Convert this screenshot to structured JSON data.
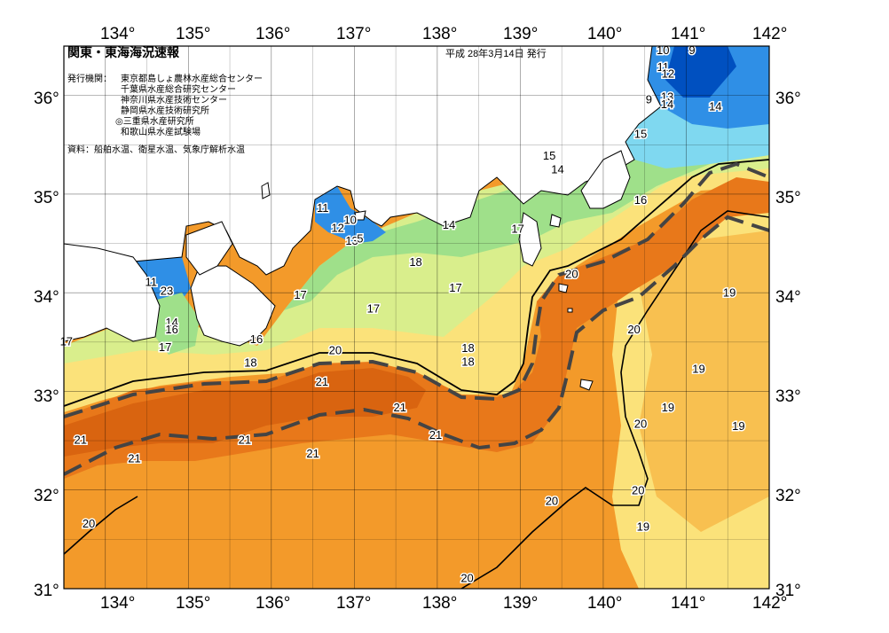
{
  "header": {
    "title": "関東・東海海況速報",
    "issued": "平成 28年3月14日 発行",
    "publisher_label": "発行機関：",
    "publishers": [
      "東京都島しょ農林水産総合センター",
      "千葉県水産総合研究センター",
      "神奈川県水産技術センター",
      "静岡県水産技術研究所",
      "◎三重県水産研究所",
      "和歌山県水産試験場"
    ],
    "source": "資料：船舶水温、衛星水温、気象庁解析水温"
  },
  "axes": {
    "lon_labels": [
      "134°",
      "135°",
      "136°",
      "137°",
      "138°",
      "139°",
      "140°",
      "141°",
      "142°"
    ],
    "lat_labels": [
      "36°",
      "35°",
      "34°",
      "33°",
      "32°",
      "31°"
    ]
  },
  "colors": {
    "cold": "#2f8fe6",
    "cool": "#7fd8f0",
    "mid": "#9fe08a",
    "lightgreen": "#d9ee8c",
    "warm1": "#fbe27a",
    "warm2": "#f8c050",
    "warm3": "#f39a2a",
    "warm4": "#e8781a",
    "deep": "#0050c0",
    "land": "#ffffff"
  },
  "isotherm_labels": [
    {
      "text": "10",
      "lon": 140.72,
      "lat": 36.45
    },
    {
      "text": "9",
      "lon": 141.07,
      "lat": 36.45
    },
    {
      "text": "11",
      "lon": 140.72,
      "lat": 36.28
    },
    {
      "text": "12",
      "lon": 140.78,
      "lat": 36.21
    },
    {
      "text": "9",
      "lon": 140.55,
      "lat": 35.95
    },
    {
      "text": "13",
      "lon": 140.77,
      "lat": 35.98
    },
    {
      "text": "14",
      "lon": 140.77,
      "lat": 35.9
    },
    {
      "text": "14",
      "lon": 141.35,
      "lat": 35.88
    },
    {
      "text": "15",
      "lon": 140.45,
      "lat": 35.6
    },
    {
      "text": "15",
      "lon": 139.35,
      "lat": 35.38
    },
    {
      "text": "14",
      "lon": 139.45,
      "lat": 35.24
    },
    {
      "text": "16",
      "lon": 140.45,
      "lat": 34.93
    },
    {
      "text": "11",
      "lon": 136.62,
      "lat": 34.85
    },
    {
      "text": "10",
      "lon": 136.95,
      "lat": 34.73
    },
    {
      "text": "12",
      "lon": 136.8,
      "lat": 34.65
    },
    {
      "text": "13",
      "lon": 136.97,
      "lat": 34.52
    },
    {
      "text": "5",
      "lon": 137.07,
      "lat": 34.54
    },
    {
      "text": "14",
      "lon": 138.14,
      "lat": 34.68
    },
    {
      "text": "17",
      "lon": 138.97,
      "lat": 34.64
    },
    {
      "text": "18",
      "lon": 137.74,
      "lat": 34.3
    },
    {
      "text": "20",
      "lon": 139.62,
      "lat": 34.18
    },
    {
      "text": "17",
      "lon": 138.22,
      "lat": 34.04
    },
    {
      "text": "17",
      "lon": 136.35,
      "lat": 33.97
    },
    {
      "text": "17",
      "lon": 137.23,
      "lat": 33.83
    },
    {
      "text": "19",
      "lon": 141.52,
      "lat": 33.99
    },
    {
      "text": "11",
      "lon": 134.55,
      "lat": 34.1
    },
    {
      "text": "23",
      "lon": 134.74,
      "lat": 34.01
    },
    {
      "text": "14",
      "lon": 134.8,
      "lat": 33.69
    },
    {
      "text": "16",
      "lon": 134.8,
      "lat": 33.62
    },
    {
      "text": "17",
      "lon": 133.53,
      "lat": 33.5
    },
    {
      "text": "17",
      "lon": 134.72,
      "lat": 33.44
    },
    {
      "text": "16",
      "lon": 135.82,
      "lat": 33.52
    },
    {
      "text": "18",
      "lon": 135.75,
      "lat": 33.28
    },
    {
      "text": "20",
      "lon": 136.77,
      "lat": 33.41
    },
    {
      "text": "18",
      "lon": 138.37,
      "lat": 33.43
    },
    {
      "text": "18",
      "lon": 138.37,
      "lat": 33.29
    },
    {
      "text": "20",
      "lon": 140.37,
      "lat": 33.62
    },
    {
      "text": "19",
      "lon": 141.15,
      "lat": 33.22
    },
    {
      "text": "21",
      "lon": 136.61,
      "lat": 33.09
    },
    {
      "text": "21",
      "lon": 137.55,
      "lat": 32.83
    },
    {
      "text": "19",
      "lon": 140.78,
      "lat": 32.83
    },
    {
      "text": "20",
      "lon": 140.45,
      "lat": 32.66
    },
    {
      "text": "19",
      "lon": 141.63,
      "lat": 32.64
    },
    {
      "text": "21",
      "lon": 137.98,
      "lat": 32.55
    },
    {
      "text": "21",
      "lon": 133.7,
      "lat": 32.5
    },
    {
      "text": "21",
      "lon": 135.68,
      "lat": 32.5
    },
    {
      "text": "21",
      "lon": 134.35,
      "lat": 32.31
    },
    {
      "text": "21",
      "lon": 136.5,
      "lat": 32.36
    },
    {
      "text": "20",
      "lon": 140.42,
      "lat": 31.99
    },
    {
      "text": "20",
      "lon": 139.38,
      "lat": 31.88
    },
    {
      "text": "20",
      "lon": 133.8,
      "lat": 31.65
    },
    {
      "text": "19",
      "lon": 140.48,
      "lat": 31.62
    },
    {
      "text": "20",
      "lon": 138.36,
      "lat": 31.1
    }
  ]
}
